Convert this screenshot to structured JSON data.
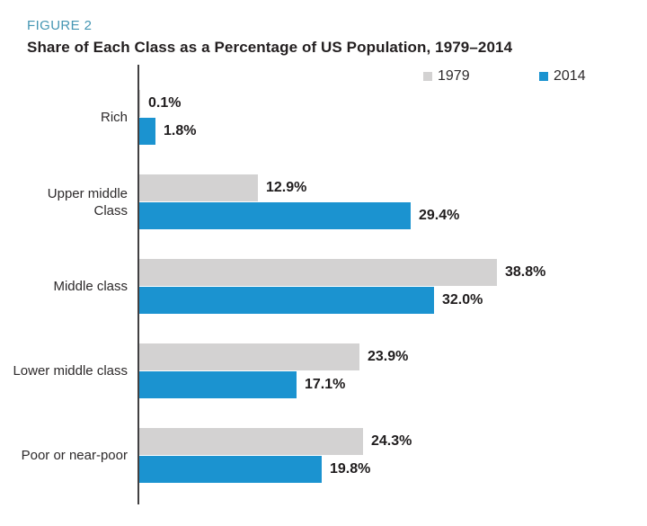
{
  "figure": {
    "label": "FIGURE 2"
  },
  "title": "Share of Each Class as a Percentage of US Population, 1979–2014",
  "legend": [
    {
      "label": "1979",
      "color": "#d3d2d2"
    },
    {
      "label": "2014",
      "color": "#1b93d0"
    }
  ],
  "colors": {
    "accent_teal": "#4596b3",
    "bar_1979": "#d3d2d2",
    "bar_2014": "#1b93d0",
    "axis": "#414042",
    "text": "#231f20"
  },
  "chart_data": {
    "type": "bar",
    "orientation": "horizontal",
    "title": "Share of Each Class as a Percentage of US Population, 1979–2014",
    "categories": [
      "Rich",
      "Upper middle Class",
      "Middle class",
      "Lower middle class",
      "Poor or near-poor"
    ],
    "category_lines": [
      [
        "Rich"
      ],
      [
        "Upper middle",
        "Class"
      ],
      [
        "Middle class"
      ],
      [
        "Lower middle class"
      ],
      [
        "Poor or near-poor"
      ]
    ],
    "series": [
      {
        "name": "1979",
        "color": "#d3d2d2",
        "values": [
          0.1,
          12.9,
          38.8,
          23.9,
          24.3
        ],
        "value_labels": [
          "0.1%",
          "12.9%",
          "38.8%",
          "23.9%",
          "24.3%"
        ]
      },
      {
        "name": "2014",
        "color": "#1b93d0",
        "values": [
          1.8,
          29.4,
          32.0,
          17.1,
          19.8
        ],
        "value_labels": [
          "1.8%",
          "29.4%",
          "32.0%",
          "17.1%",
          "19.8%"
        ]
      }
    ],
    "xlim": [
      0,
      40
    ],
    "grid": false,
    "legend_position": "top-right",
    "value_format": "percent"
  }
}
